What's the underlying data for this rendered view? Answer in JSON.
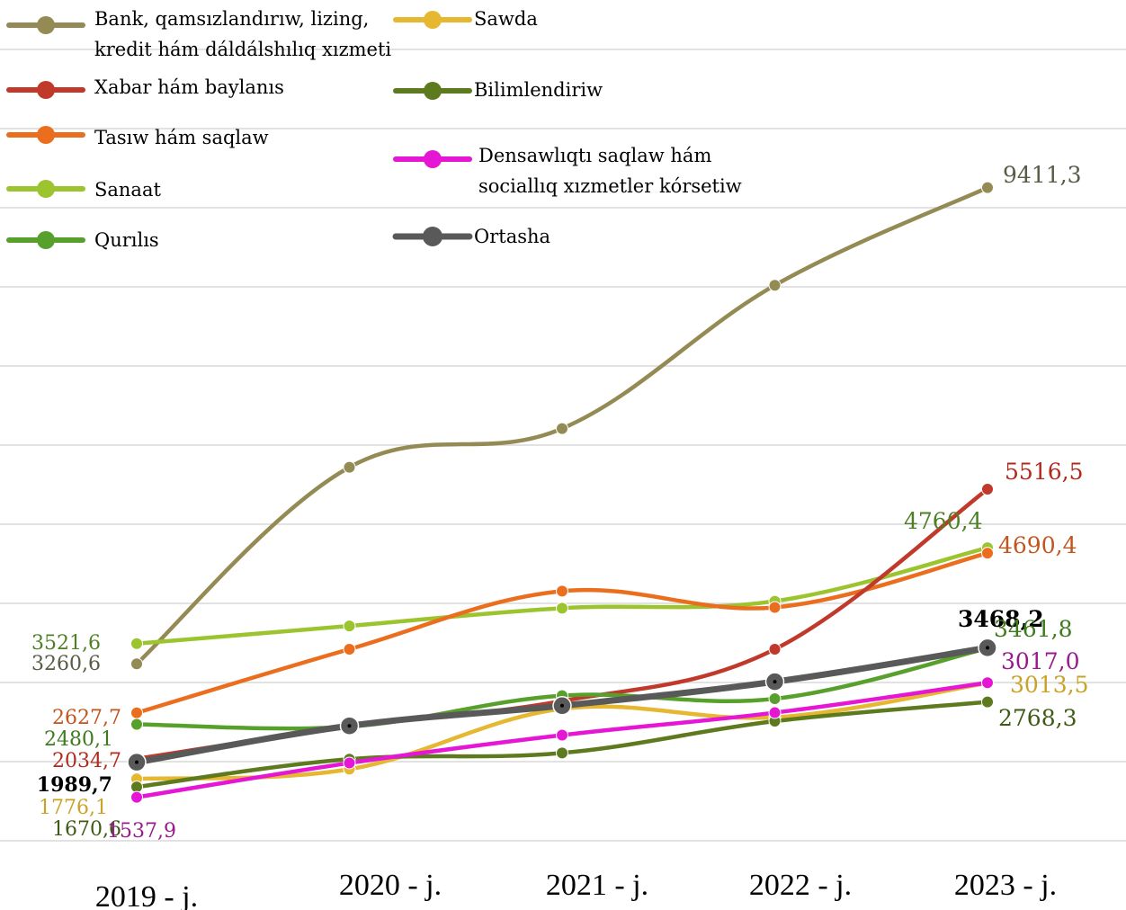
{
  "chart_data": {
    "type": "line",
    "categories": [
      "2019 - j.",
      "2020 - j.",
      "2021 - j.",
      "2022 - j.",
      "2023 - j."
    ],
    "ylim": [
      0,
      10500
    ],
    "grid": true,
    "legend_position": "top-left",
    "series": [
      {
        "name_lines": [
          "Bank, qamsızlandırıw, lizing,",
          "kredit hám dáldálshılıq xızmeti"
        ],
        "color": "#948A54",
        "values": [
          3260.6,
          5800,
          6300,
          8150,
          9411.3
        ],
        "start_label": "3260,6",
        "end_label": "9411,3"
      },
      {
        "name_lines": [
          "Sawda"
        ],
        "color": "#E6B730",
        "values": [
          1776.1,
          1900,
          2680,
          2570,
          3013.5
        ],
        "start_label": "1776,1",
        "end_label": "3013,5"
      },
      {
        "name_lines": [
          "Xabar hám baylanıs"
        ],
        "color": "#C0392B",
        "values": [
          2034.7,
          2450,
          2780,
          3450,
          5516.5
        ],
        "start_label": "2034,7",
        "end_label": "5516,5"
      },
      {
        "name_lines": [
          "Bilimlendiriw"
        ],
        "color": "#5E7A1E",
        "values": [
          1670.6,
          2030,
          2110,
          2520,
          2768.3
        ],
        "start_label": "1670,6",
        "end_label": "2768,3"
      },
      {
        "name_lines": [
          "Tasıw hám saqlaw"
        ],
        "color": "#EA6E1E",
        "values": [
          2627.7,
          3450,
          4200,
          3990,
          4690.4
        ],
        "start_label": "2627,7",
        "end_label": "4690,4"
      },
      {
        "name_lines": [
          "Densawlıqtı saqlaw hám",
          "sociallıq xızmetler kórsetiw"
        ],
        "color": "#E516D4",
        "values": [
          1537.9,
          1980,
          2340,
          2630,
          3017.0
        ],
        "start_label": "1537,9",
        "end_label": "3017,0"
      },
      {
        "name_lines": [
          "Sanaat"
        ],
        "color": "#9BC42F",
        "values": [
          3521.6,
          3750,
          3980,
          4070,
          4760.4
        ],
        "start_label": "3521,6",
        "end_label": "4760,4"
      },
      {
        "name_lines": [
          "Qurılıs"
        ],
        "color": "#57A02B",
        "values": [
          2480.1,
          2450,
          2850,
          2810,
          3461.8
        ],
        "start_label": "2480,1",
        "end_label": "3461,8"
      },
      {
        "name_lines": [
          "Ortasha"
        ],
        "color": "#595959",
        "values": [
          1989.7,
          2460,
          2720,
          3030,
          3468.2
        ],
        "start_label": "1989,7",
        "end_label": "3468,2"
      }
    ]
  },
  "label_colors": {
    "Bank": "#5A5A46",
    "Sawda": "#C9A227",
    "Xabar": "#B22A1E",
    "Bilimlendiriw": "#3E5A14",
    "Tasiw": "#C0561E",
    "Densawliq": "#9A1A8E",
    "Sanaat": "#4F7F24",
    "Qurilis": "#3E7A1E",
    "Ortasha": "#000000"
  }
}
